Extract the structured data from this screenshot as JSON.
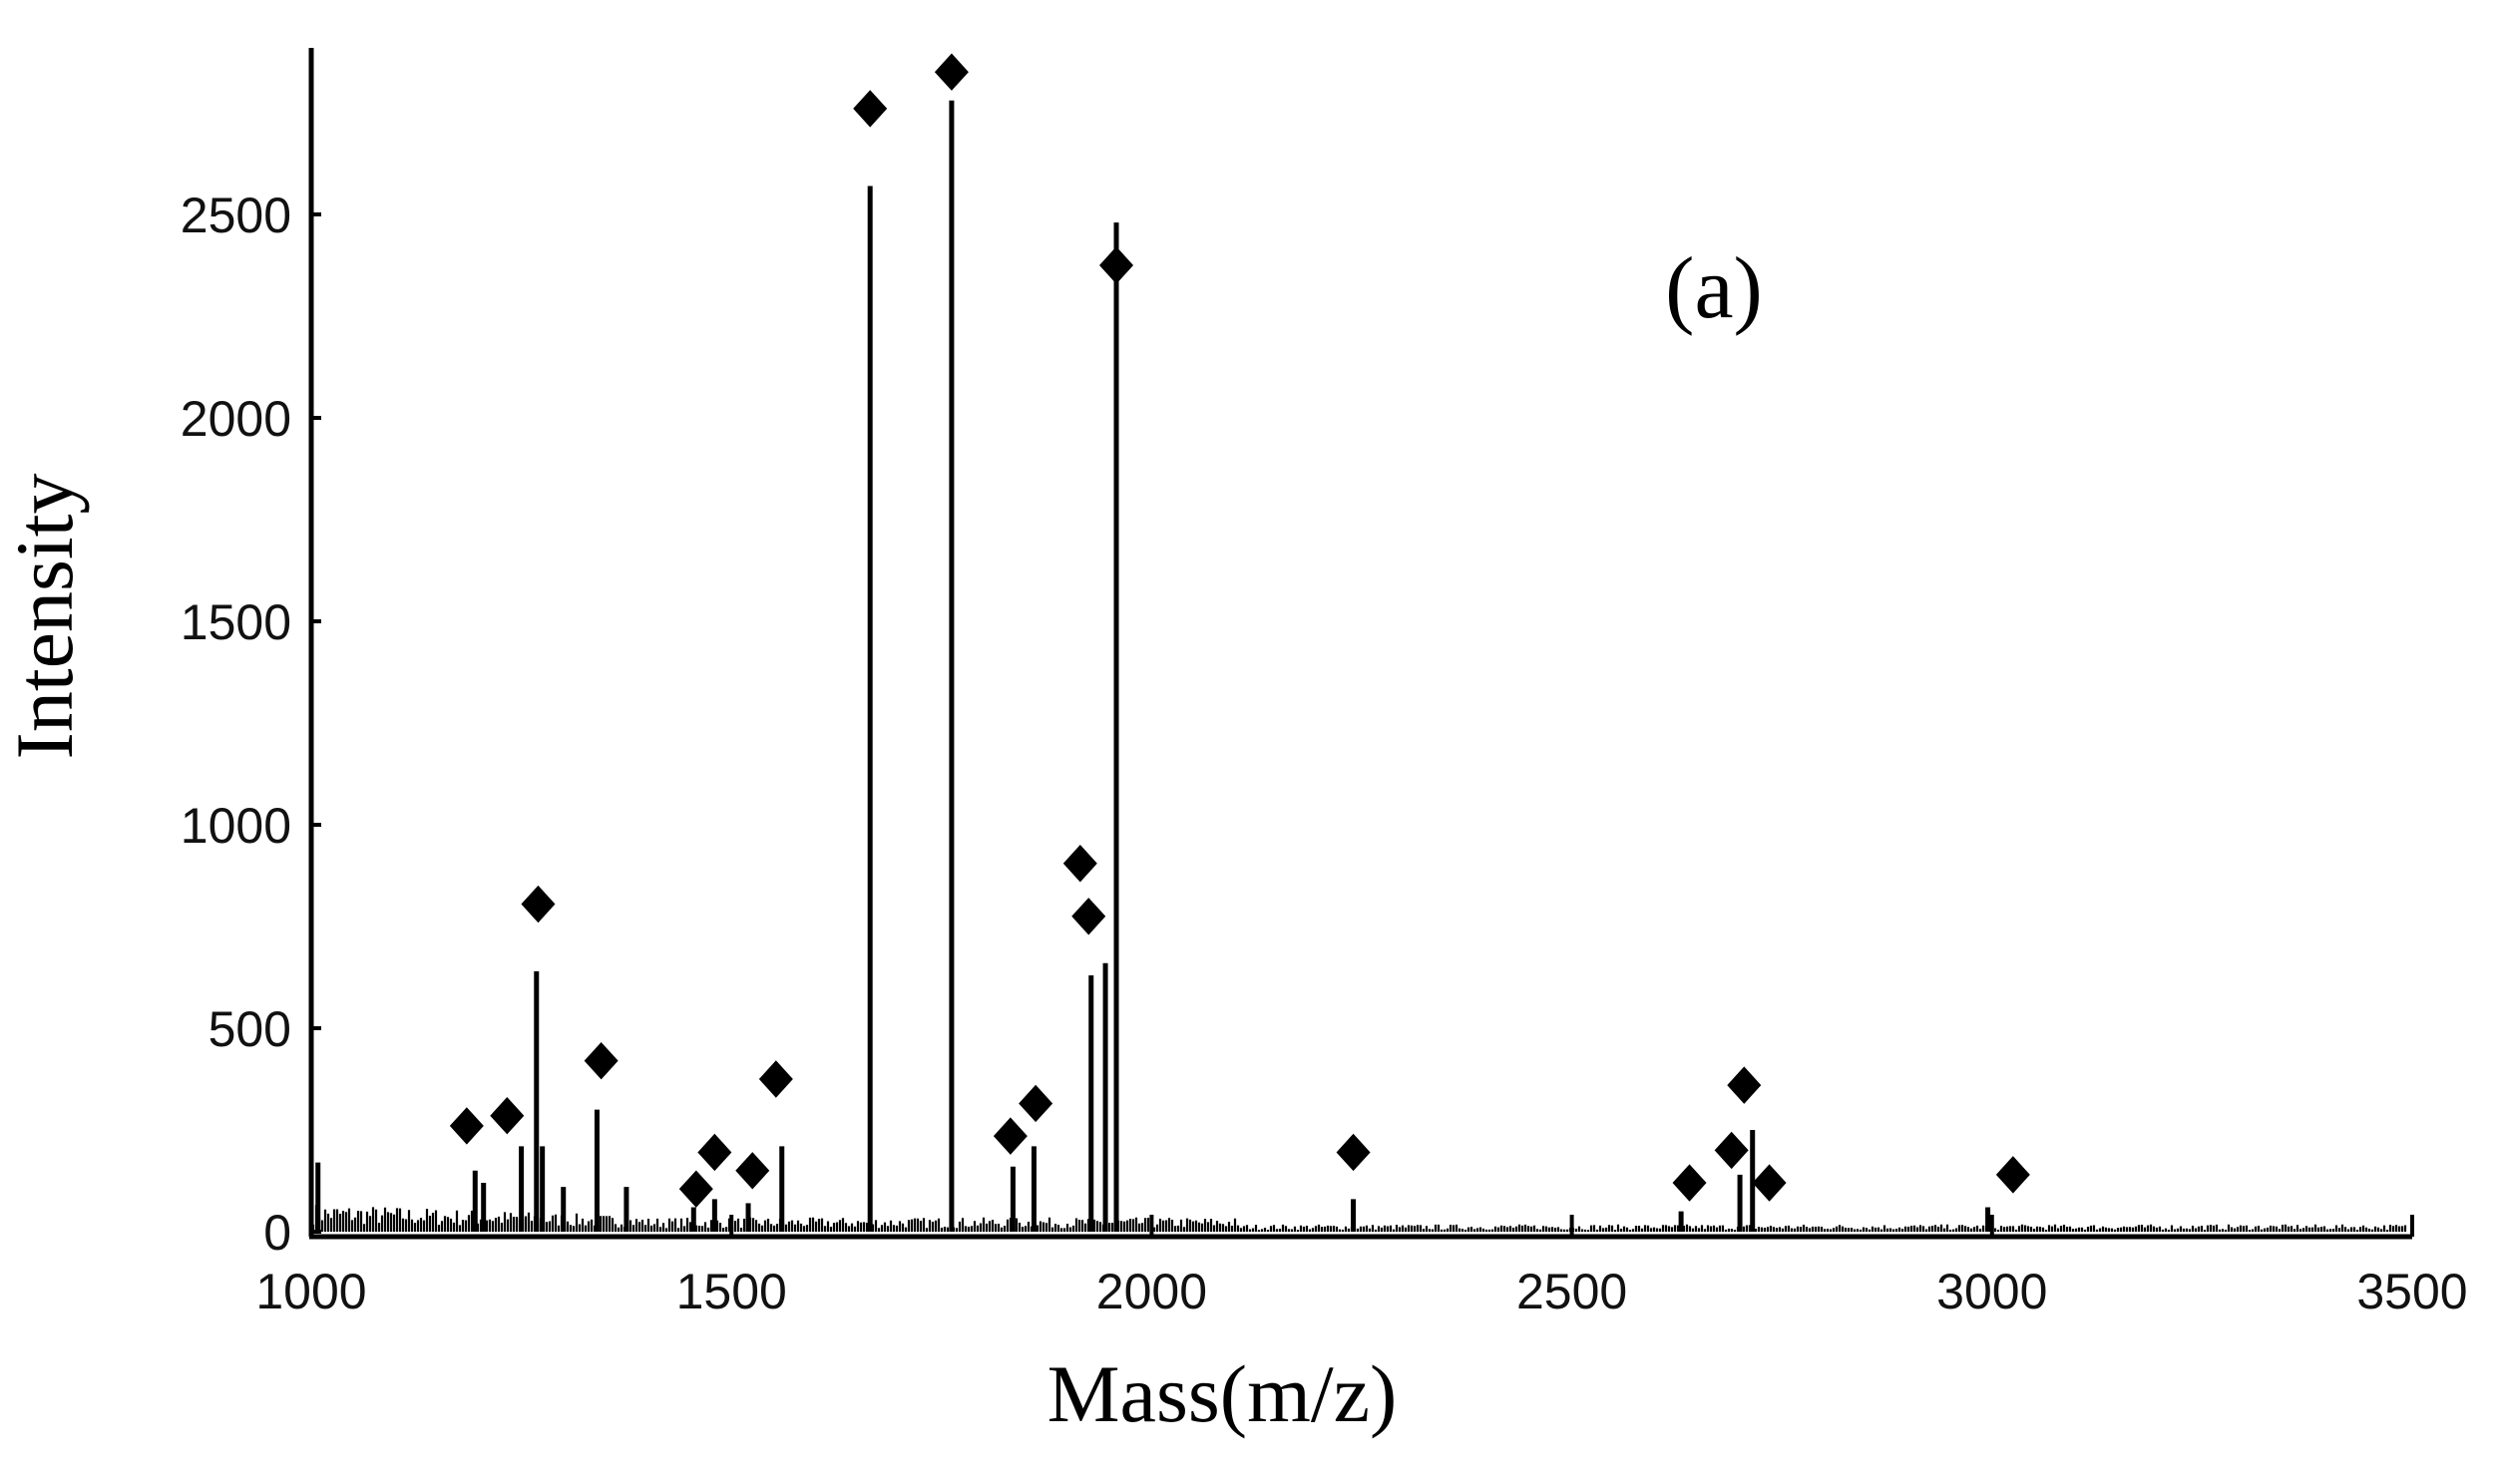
{
  "chart_data": {
    "type": "bar",
    "panel_label": "(a)",
    "xlabel": "Mass(m/z)",
    "ylabel": "Intensity",
    "xlim": [
      1000,
      3500
    ],
    "ylim": [
      0,
      2900
    ],
    "xticks": [
      1000,
      1500,
      2000,
      2500,
      3000,
      3500
    ],
    "yticks": [
      0,
      500,
      1000,
      1500,
      2000,
      2500
    ],
    "colors": {
      "peaks": "#000000",
      "markers": "#000000",
      "axes": "#000000"
    },
    "marker_symbol": "diamond",
    "peaks": [
      {
        "x": 1008,
        "y": 170
      },
      {
        "x": 1195,
        "y": 150
      },
      {
        "x": 1205,
        "y": 120
      },
      {
        "x": 1250,
        "y": 210
      },
      {
        "x": 1268,
        "y": 640
      },
      {
        "x": 1275,
        "y": 210
      },
      {
        "x": 1300,
        "y": 110
      },
      {
        "x": 1340,
        "y": 300
      },
      {
        "x": 1375,
        "y": 110
      },
      {
        "x": 1455,
        "y": 60
      },
      {
        "x": 1480,
        "y": 80
      },
      {
        "x": 1520,
        "y": 70
      },
      {
        "x": 1560,
        "y": 210
      },
      {
        "x": 1665,
        "y": 2570
      },
      {
        "x": 1762,
        "y": 2780
      },
      {
        "x": 1835,
        "y": 160
      },
      {
        "x": 1860,
        "y": 210
      },
      {
        "x": 1928,
        "y": 630
      },
      {
        "x": 1945,
        "y": 660
      },
      {
        "x": 1958,
        "y": 2480
      },
      {
        "x": 2240,
        "y": 80
      },
      {
        "x": 2630,
        "y": 50
      },
      {
        "x": 2700,
        "y": 140
      },
      {
        "x": 2715,
        "y": 250
      },
      {
        "x": 2995,
        "y": 60
      }
    ],
    "markers": [
      {
        "x": 1185,
        "y": 260
      },
      {
        "x": 1233,
        "y": 285
      },
      {
        "x": 1270,
        "y": 805
      },
      {
        "x": 1345,
        "y": 420
      },
      {
        "x": 1458,
        "y": 105
      },
      {
        "x": 1480,
        "y": 195
      },
      {
        "x": 1525,
        "y": 150
      },
      {
        "x": 1553,
        "y": 375
      },
      {
        "x": 1665,
        "y": 2760
      },
      {
        "x": 1762,
        "y": 2850
      },
      {
        "x": 1832,
        "y": 235
      },
      {
        "x": 1862,
        "y": 315
      },
      {
        "x": 1915,
        "y": 905
      },
      {
        "x": 1925,
        "y": 775
      },
      {
        "x": 1958,
        "y": 2375
      },
      {
        "x": 2240,
        "y": 195
      },
      {
        "x": 2640,
        "y": 120
      },
      {
        "x": 2690,
        "y": 200
      },
      {
        "x": 2705,
        "y": 360
      },
      {
        "x": 2735,
        "y": 120
      },
      {
        "x": 3025,
        "y": 140
      }
    ]
  }
}
